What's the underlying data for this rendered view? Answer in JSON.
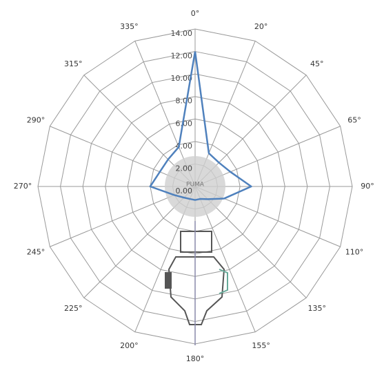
{
  "chart_data": {
    "type": "radar",
    "categories": [
      "0°",
      "20°",
      "45°",
      "65°",
      "90°",
      "110°",
      "135°",
      "155°",
      "180°",
      "200°",
      "225°",
      "245°",
      "270°",
      "290°",
      "315°",
      "335°"
    ],
    "series": [
      {
        "color": "#4f81bd",
        "values": [
          12,
          3.2,
          3.0,
          3.4,
          5.0,
          2.8,
          1.6,
          1.2,
          1.2,
          1.2,
          1.4,
          2.0,
          4.0,
          3.4,
          3.4,
          3.8
        ]
      }
    ],
    "rlim": [
      0,
      14
    ],
    "rticks": [
      {
        "value": 0,
        "label": "0.00"
      },
      {
        "value": 2,
        "label": "2.00"
      },
      {
        "value": 4,
        "label": "4.00"
      },
      {
        "value": 6,
        "label": "6.00"
      },
      {
        "value": 8,
        "label": "8.00"
      },
      {
        "value": 10,
        "label": "10.00"
      },
      {
        "value": 12,
        "label": "12.00"
      },
      {
        "value": 14,
        "label": "14.00"
      }
    ],
    "center_label": "PUMA"
  }
}
